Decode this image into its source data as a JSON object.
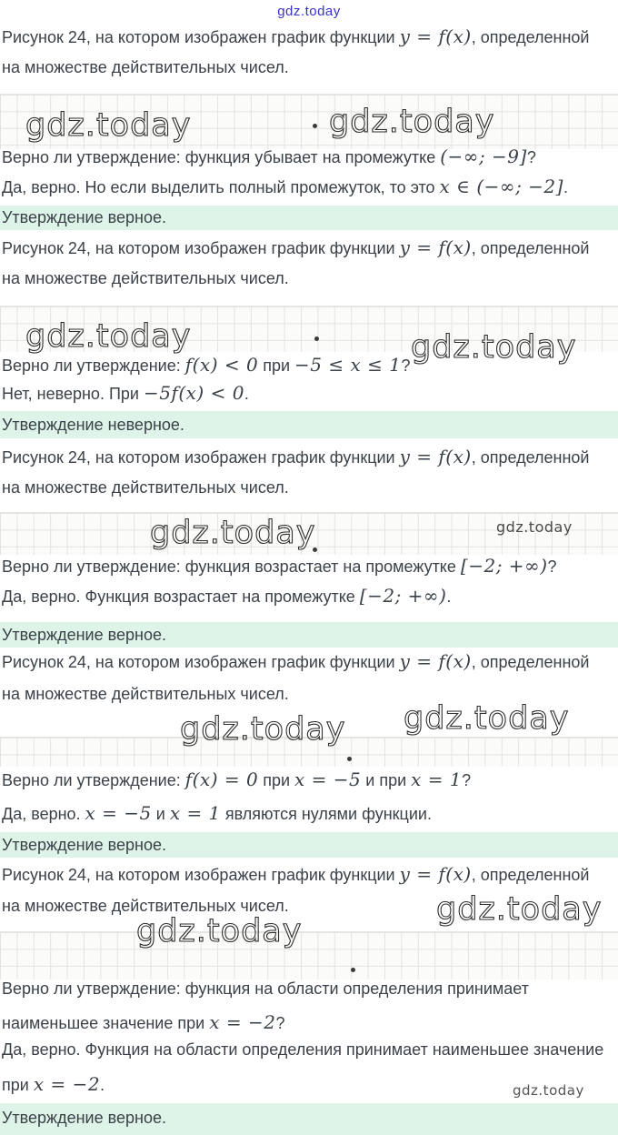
{
  "page": {
    "header_link": "gdz.today",
    "watermark": "gdz.today",
    "colors": {
      "link": "#3833cb",
      "verdict_bg": "#def4e8",
      "text": "#3b4148",
      "grid_line": "#e3e3e0"
    }
  },
  "figure_caption": {
    "line1": [
      {
        "t": "Рисунок 24, на котором изображен график функции "
      },
      {
        "m": "y = f(x)"
      },
      {
        "t": ", определенной"
      }
    ],
    "line2": [
      {
        "t": "на множестве действительных чисел."
      }
    ]
  },
  "blocks": [
    {
      "question_line1": [
        {
          "t": "Верно ли утверждение: функция убывает на промежутке "
        },
        {
          "m": "(−∞; −9]"
        },
        {
          "t": "?"
        }
      ],
      "answer_line1": [
        {
          "t": "Да, верно. Но если выделить полный промежуток, то это "
        },
        {
          "m": "x ∈ (−∞; −2]"
        },
        {
          "t": "."
        }
      ],
      "verdict": "Утверждение верное."
    },
    {
      "question_line1": [
        {
          "t": "Верно ли утверждение: "
        },
        {
          "m": "f(x) < 0"
        },
        {
          "t": " при "
        },
        {
          "m": "−5 ≤ x ≤ 1"
        },
        {
          "t": "?"
        }
      ],
      "answer_line1": [
        {
          "t": "Нет, неверно. При "
        },
        {
          "m": "−5f(x) < 0"
        },
        {
          "t": "."
        }
      ],
      "verdict": "Утверждение неверное."
    },
    {
      "question_line1": [
        {
          "t": "Верно ли утверждение: функция возрастает на промежутке "
        },
        {
          "m": "[−2; +∞)"
        },
        {
          "t": "?"
        }
      ],
      "answer_line1": [
        {
          "t": "Да, верно. Функция возрастает на промежутке "
        },
        {
          "m": "[−2; +∞)"
        },
        {
          "t": "."
        }
      ],
      "verdict": "Утверждение верное."
    },
    {
      "question_line1": [
        {
          "t": "Верно ли утверждение: "
        },
        {
          "m": "f(x) = 0"
        },
        {
          "t": " при "
        },
        {
          "m": "x = −5"
        },
        {
          "t": " и при "
        },
        {
          "m": "x = 1"
        },
        {
          "t": "?"
        }
      ],
      "answer_line1": [
        {
          "t": "Да, верно. "
        },
        {
          "m": "x = −5"
        },
        {
          "t": " и "
        },
        {
          "m": "x = 1"
        },
        {
          "t": " являются нулями функции."
        }
      ],
      "verdict": "Утверждение верное."
    },
    {
      "question_line1": [
        {
          "t": "Верно ли утверждение: функция на области определения принимает"
        }
      ],
      "question_line2": [
        {
          "t": "наименьшее значение при "
        },
        {
          "m": "x = −2"
        },
        {
          "t": "?"
        }
      ],
      "answer_line1": [
        {
          "t": "Да, верно. Функция на области определения принимает наименьшее значение"
        }
      ],
      "answer_line2": [
        {
          "t": "при "
        },
        {
          "m": "x = −2"
        },
        {
          "t": "."
        }
      ],
      "verdict": "Утверждение верное."
    }
  ]
}
